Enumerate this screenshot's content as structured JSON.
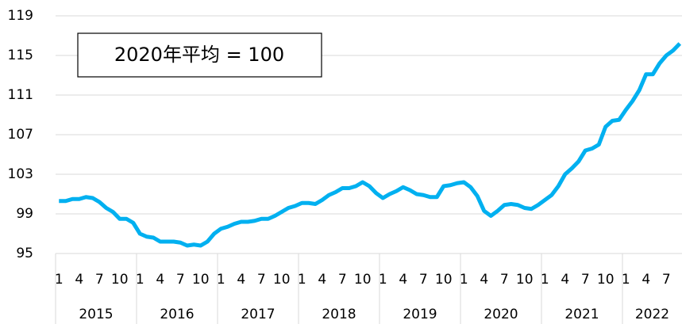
{
  "chart_data": {
    "type": "line",
    "annotation": "2020年平均 = 100",
    "categories": [
      "1",
      null,
      null,
      "4",
      null,
      null,
      "7",
      null,
      null,
      "10",
      null,
      null,
      "1",
      null,
      null,
      "4",
      null,
      null,
      "7",
      null,
      null,
      "10",
      null,
      null,
      "1",
      null,
      null,
      "4",
      null,
      null,
      "7",
      null,
      null,
      "10",
      null,
      null,
      "1",
      null,
      null,
      "4",
      null,
      null,
      "7",
      null,
      null,
      "10",
      null,
      null,
      "1",
      null,
      null,
      "4",
      null,
      null,
      "7",
      null,
      null,
      "10",
      null,
      null,
      "1",
      null,
      null,
      "4",
      null,
      null,
      "7",
      null,
      null,
      "10",
      null,
      null,
      "1",
      null,
      null,
      "4",
      null,
      null,
      "7",
      null,
      null,
      "10",
      null,
      null,
      "1",
      null,
      null,
      "4",
      null,
      null,
      "7",
      null,
      null
    ],
    "years": [
      "2015",
      "2016",
      "2017",
      "2018",
      "2019",
      "2020",
      "2021",
      "2022"
    ],
    "values": [
      100.3,
      100.3,
      100.5,
      100.5,
      100.7,
      100.6,
      100.2,
      99.6,
      99.2,
      98.5,
      98.5,
      98.1,
      97.0,
      96.7,
      96.6,
      96.2,
      96.2,
      96.2,
      96.1,
      95.8,
      95.9,
      95.8,
      96.2,
      97.0,
      97.5,
      97.7,
      98.0,
      98.2,
      98.2,
      98.3,
      98.5,
      98.5,
      98.8,
      99.2,
      99.6,
      99.8,
      100.1,
      100.1,
      100.0,
      100.4,
      100.9,
      101.2,
      101.6,
      101.6,
      101.8,
      102.2,
      101.8,
      101.1,
      100.6,
      101.0,
      101.3,
      101.7,
      101.4,
      101.0,
      100.9,
      100.7,
      100.7,
      101.8,
      101.9,
      102.1,
      102.2,
      101.7,
      100.8,
      99.3,
      98.8,
      99.3,
      99.9,
      100.0,
      99.9,
      99.6,
      99.5,
      99.9,
      100.4,
      100.9,
      101.8,
      103.0,
      103.6,
      104.3,
      105.4,
      105.6,
      106.0,
      107.8,
      108.4,
      108.5,
      109.5,
      110.4,
      111.5,
      113.1,
      113.1,
      114.2,
      115.0,
      115.5,
      116.2
    ],
    "color": "#00b0f0",
    "ylim": [
      95,
      119
    ],
    "yticks": [
      95,
      99,
      103,
      107,
      111,
      115,
      119
    ],
    "grid": true
  }
}
